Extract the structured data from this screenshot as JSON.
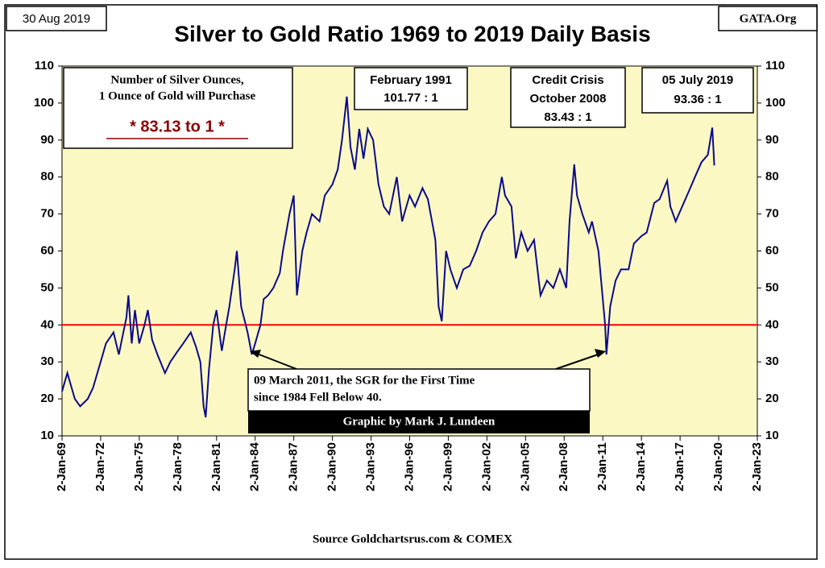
{
  "chart_data": {
    "type": "line",
    "title": "Silver to Gold Ratio 1969 to 2019 Daily Basis",
    "date_label": "30 Aug 2019",
    "site_label": "GATA.Org",
    "source": "Source Goldchartsrus.com & COMEX",
    "credit": "Graphic by Mark J. Lundeen",
    "info_box": {
      "lines": [
        "Number  of Silver Ounces,",
        "1 Ounce of Gold will Purchase"
      ],
      "current": "* 83.13 to 1 *"
    },
    "annotations": [
      {
        "lines": [
          "February 1991",
          "101.77 : 1"
        ]
      },
      {
        "lines": [
          "Credit Crisis",
          "October 2008",
          "83.43 : 1"
        ]
      },
      {
        "lines": [
          "05 July 2019",
          "93.36 : 1"
        ]
      },
      {
        "lines": [
          "09 March  2011, the SGR for the First Time",
          "since 1984 Fell Below  40."
        ]
      }
    ],
    "reference_line": {
      "value": 40,
      "color": "#ff0000"
    },
    "plot_background": "#fcf8c4",
    "series": [
      {
        "name": "Silver to Gold Ratio",
        "color": "#0a0a8c",
        "x": [
          "1969-01-02",
          "1969-06-01",
          "1970-01-01",
          "1970-06-01",
          "1971-01-01",
          "1971-06-01",
          "1972-01-01",
          "1972-06-01",
          "1973-01-01",
          "1973-06-01",
          "1974-01-01",
          "1974-03-01",
          "1974-06-01",
          "1974-09-01",
          "1975-01-01",
          "1975-06-01",
          "1975-09-01",
          "1976-01-01",
          "1976-06-01",
          "1977-01-01",
          "1977-06-01",
          "1978-01-01",
          "1978-06-01",
          "1979-01-01",
          "1979-06-01",
          "1979-10-01",
          "1980-01-01",
          "1980-03-01",
          "1980-06-01",
          "1980-10-01",
          "1981-01-01",
          "1981-06-01",
          "1981-10-01",
          "1982-01-01",
          "1982-06-01",
          "1982-08-01",
          "1982-12-01",
          "1983-06-01",
          "1983-10-01",
          "1984-01-01",
          "1984-06-01",
          "1984-09-01",
          "1985-01-01",
          "1985-06-01",
          "1985-12-01",
          "1986-03-01",
          "1986-09-01",
          "1987-01-01",
          "1987-04-01",
          "1987-09-01",
          "1988-01-01",
          "1988-06-01",
          "1989-01-01",
          "1989-06-01",
          "1990-01-01",
          "1990-06-01",
          "1990-10-01",
          "1991-02-15",
          "1991-06-01",
          "1991-10-01",
          "1992-02-01",
          "1992-06-01",
          "1992-10-01",
          "1993-03-01",
          "1993-08-01",
          "1994-01-01",
          "1994-06-01",
          "1995-01-01",
          "1995-06-01",
          "1996-01-01",
          "1996-06-01",
          "1997-01-01",
          "1997-06-01",
          "1998-01-01",
          "1998-04-01",
          "1998-07-01",
          "1998-11-01",
          "1999-03-01",
          "1999-09-01",
          "2000-03-01",
          "2000-09-01",
          "2001-03-01",
          "2001-09-01",
          "2002-03-01",
          "2002-09-01",
          "2003-03-01",
          "2003-06-01",
          "2003-12-01",
          "2004-04-01",
          "2004-09-01",
          "2005-03-01",
          "2005-09-01",
          "2006-03-01",
          "2006-09-01",
          "2007-03-01",
          "2007-09-01",
          "2008-03-01",
          "2008-06-01",
          "2008-10-15",
          "2009-01-01",
          "2009-06-01",
          "2009-12-01",
          "2010-03-01",
          "2010-09-01",
          "2011-03-09",
          "2011-04-15",
          "2011-08-01",
          "2012-01-01",
          "2012-06-01",
          "2013-01-01",
          "2013-06-01",
          "2014-01-01",
          "2014-06-01",
          "2015-01-01",
          "2015-06-01",
          "2016-01-01",
          "2016-04-01",
          "2016-09-01",
          "2017-03-01",
          "2017-09-01",
          "2018-03-01",
          "2018-09-01",
          "2019-03-01",
          "2019-07-05",
          "2019-08-30"
        ],
        "values": [
          22,
          27,
          20,
          18,
          20,
          23,
          30,
          35,
          38,
          32,
          42,
          48,
          35,
          44,
          35,
          40,
          44,
          36,
          32,
          27,
          30,
          33,
          35,
          38,
          34,
          30,
          18,
          15,
          28,
          40,
          44,
          33,
          40,
          45,
          55,
          60,
          45,
          38,
          32,
          35,
          40,
          47,
          48,
          50,
          54,
          60,
          70,
          75,
          48,
          60,
          65,
          70,
          68,
          75,
          78,
          82,
          90,
          101.77,
          88,
          82,
          93,
          85,
          93,
          90,
          78,
          72,
          70,
          80,
          68,
          75,
          72,
          77,
          74,
          63,
          45,
          41,
          60,
          55,
          50,
          55,
          56,
          60,
          65,
          68,
          70,
          80,
          75,
          72,
          58,
          65,
          60,
          63,
          48,
          52,
          50,
          55,
          50,
          68,
          83.43,
          75,
          70,
          65,
          68,
          60,
          40,
          32,
          45,
          52,
          55,
          55,
          62,
          64,
          65,
          73,
          74,
          79,
          72,
          68,
          72,
          76,
          80,
          84,
          86,
          93.36,
          83.13
        ]
      }
    ],
    "xlim": [
      "1969-01-02",
      "2023-01-02"
    ],
    "xticks": [
      {
        "value": "1969-01-02",
        "label": "2-Jan-69"
      },
      {
        "value": "1972-01-02",
        "label": "2-Jan-72"
      },
      {
        "value": "1975-01-02",
        "label": "2-Jan-75"
      },
      {
        "value": "1978-01-02",
        "label": "2-Jan-78"
      },
      {
        "value": "1981-01-02",
        "label": "2-Jan-81"
      },
      {
        "value": "1984-01-02",
        "label": "2-Jan-84"
      },
      {
        "value": "1987-01-02",
        "label": "2-Jan-87"
      },
      {
        "value": "1990-01-02",
        "label": "2-Jan-90"
      },
      {
        "value": "1993-01-02",
        "label": "2-Jan-93"
      },
      {
        "value": "1996-01-02",
        "label": "2-Jan-96"
      },
      {
        "value": "1999-01-02",
        "label": "2-Jan-99"
      },
      {
        "value": "2002-01-02",
        "label": "2-Jan-02"
      },
      {
        "value": "2005-01-02",
        "label": "2-Jan-05"
      },
      {
        "value": "2008-01-02",
        "label": "2-Jan-08"
      },
      {
        "value": "2011-01-02",
        "label": "2-Jan-11"
      },
      {
        "value": "2014-01-02",
        "label": "2-Jan-14"
      },
      {
        "value": "2017-01-02",
        "label": "2-Jan-17"
      },
      {
        "value": "2020-01-02",
        "label": "2-Jan-20"
      },
      {
        "value": "2023-01-02",
        "label": "2-Jan-23"
      }
    ],
    "ylim": [
      10,
      110
    ],
    "yticks": [
      10,
      20,
      30,
      40,
      50,
      60,
      70,
      80,
      90,
      100,
      110
    ]
  }
}
